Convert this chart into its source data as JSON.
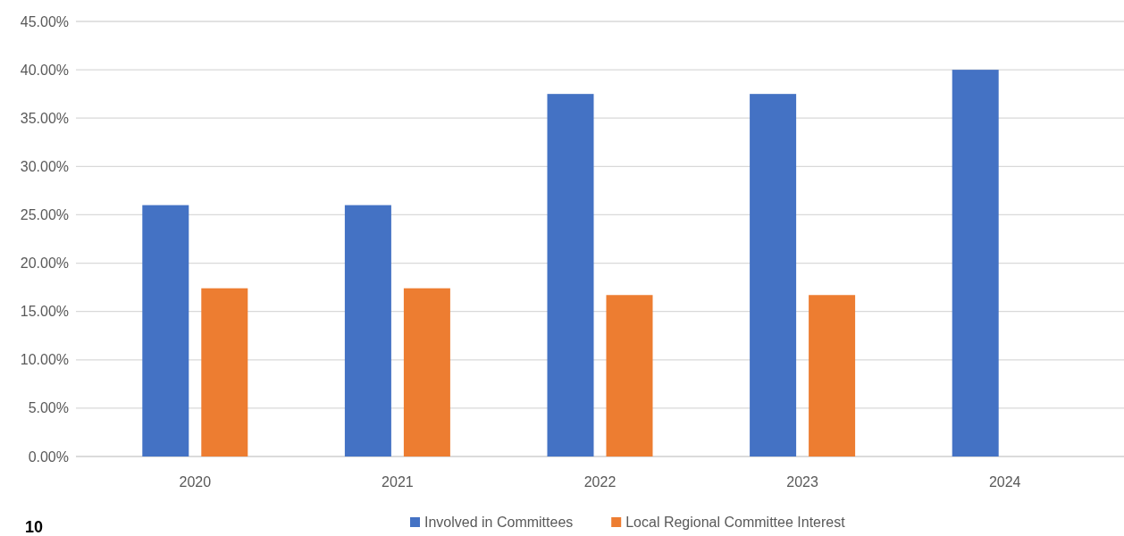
{
  "chart_data": {
    "type": "bar",
    "categories": [
      "2020",
      "2021",
      "2022",
      "2023",
      "2024"
    ],
    "series": [
      {
        "name": "Involved in Committees",
        "color": "#4472c4",
        "values": [
          26,
          26,
          37.5,
          37.5,
          40
        ]
      },
      {
        "name": "Local Regional Committee Interest",
        "color": "#ed7d31",
        "values": [
          17.4,
          17.4,
          16.7,
          16.7,
          null
        ]
      }
    ],
    "ylim": [
      0,
      45
    ],
    "yticks": [
      {
        "value": 0,
        "label": "0.00%"
      },
      {
        "value": 5,
        "label": "5.00%"
      },
      {
        "value": 10,
        "label": "10.00%"
      },
      {
        "value": 15,
        "label": "15.00%"
      },
      {
        "value": 20,
        "label": "20.00%"
      },
      {
        "value": 25,
        "label": "25.00%"
      },
      {
        "value": 30,
        "label": "30.00%"
      },
      {
        "value": 35,
        "label": "35.00%"
      },
      {
        "value": 40,
        "label": "40.00%"
      },
      {
        "value": 45,
        "label": "45.00%"
      }
    ],
    "grid": "y",
    "legend": "bottom",
    "annotations": [
      "10"
    ]
  }
}
